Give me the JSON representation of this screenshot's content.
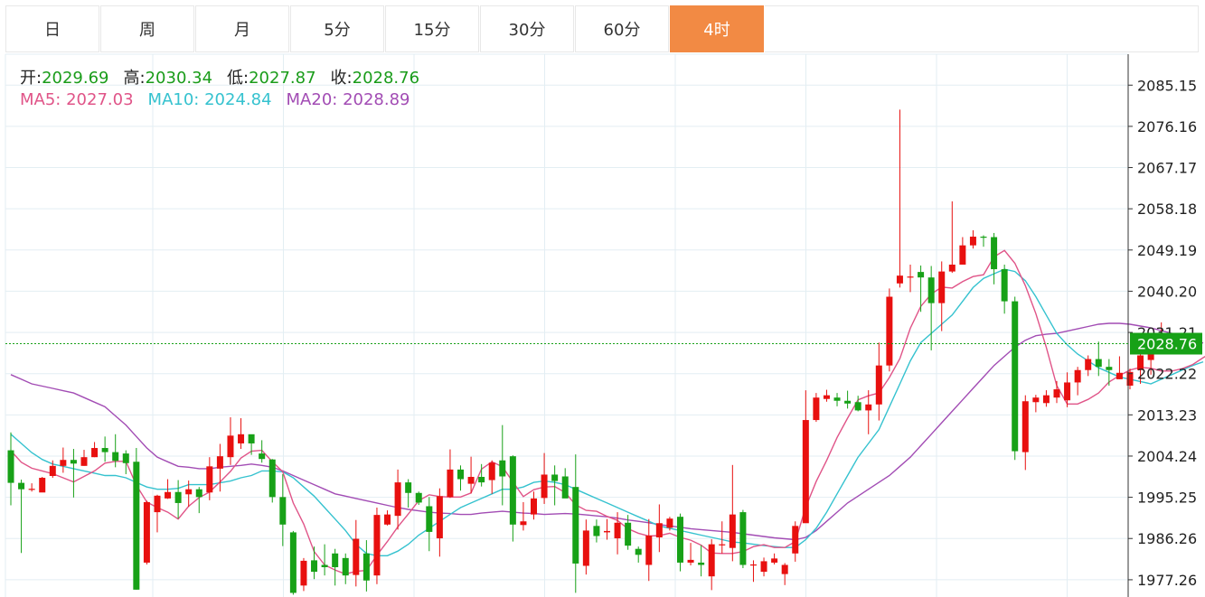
{
  "tabs": [
    {
      "label": "日",
      "active": false
    },
    {
      "label": "周",
      "active": false
    },
    {
      "label": "月",
      "active": false
    },
    {
      "label": "5分",
      "active": false
    },
    {
      "label": "15分",
      "active": false
    },
    {
      "label": "30分",
      "active": false
    },
    {
      "label": "60分",
      "active": false
    },
    {
      "label": "4时",
      "active": true
    }
  ],
  "ohlc": {
    "open_label": "开:",
    "open": "2029.69",
    "high_label": "高:",
    "high": "2030.34",
    "low_label": "低:",
    "low": "2027.87",
    "close_label": "收:",
    "close": "2028.76"
  },
  "ma": {
    "ma5_label": "MA5:",
    "ma5": "2027.03",
    "ma10_label": "MA10:",
    "ma10": "2024.84",
    "ma20_label": "MA20:",
    "ma20": "2028.89"
  },
  "colors": {
    "up": "#e8100f",
    "down": "#17a117",
    "ma5": "#e05488",
    "ma10": "#35c2cf",
    "ma20": "#a24cb4",
    "grid": "#e3eef3",
    "price_tag": "#17a117",
    "active_tab": "#f28a44"
  },
  "chart_data": {
    "type": "candlestick",
    "y_ticks": [
      "2085.15",
      "2076.16",
      "2067.17",
      "2058.18",
      "2049.19",
      "2040.20",
      "2031.21",
      "2022.22",
      "2013.23",
      "2004.24",
      "1995.25",
      "1986.26",
      "1977.26"
    ],
    "ylim": [
      1973.5,
      2091.9
    ],
    "last_price": "2028.76",
    "candles": [
      [
        2005.5,
        1998.4,
        2009.4,
        1993.5
      ],
      [
        1998.4,
        1997.0,
        1999.1,
        1983.1
      ],
      [
        1997.0,
        1997.1,
        1998.3,
        1996.5
      ],
      [
        1996.3,
        1999.5,
        1999.7,
        1996.5
      ],
      [
        1999.9,
        2002.1,
        2003.3,
        1999.5
      ],
      [
        2002.1,
        2003.4,
        2006.1,
        2000.6
      ],
      [
        2003.4,
        2002.6,
        2005.8,
        1995.2
      ],
      [
        2002.1,
        2004.0,
        2005.6,
        2002.1
      ],
      [
        2004.0,
        2006.0,
        2007.3,
        2004.0
      ],
      [
        2006.0,
        2005.1,
        2008.5,
        2003.0
      ],
      [
        2005.1,
        2003.2,
        2009.0,
        2001.8
      ],
      [
        2004.8,
        2002.7,
        2005.5,
        2000.3
      ],
      [
        2003.0,
        1975.1,
        2006.0,
        1975.1
      ],
      [
        1981.0,
        1994.2,
        1994.5,
        1980.6
      ],
      [
        1992.0,
        1995.6,
        1995.8,
        1987.6
      ],
      [
        1995.0,
        1996.4,
        1999.2,
        1994.9
      ],
      [
        1996.4,
        1994.0,
        1999.0,
        1990.6
      ],
      [
        1995.9,
        1997.0,
        1998.9,
        1993.2
      ],
      [
        1997.0,
        1995.3,
        1997.5,
        1991.8
      ],
      [
        1996.3,
        2002.0,
        2004.0,
        1994.6
      ],
      [
        2001.5,
        2004.2,
        2006.9,
        1996.5
      ],
      [
        2004.0,
        2008.7,
        2012.7,
        2002.3
      ],
      [
        2007.0,
        2009.0,
        2012.5,
        2005.8
      ],
      [
        2009.0,
        2007.0,
        2008.9,
        2004.5
      ],
      [
        2004.8,
        2003.6,
        2007.7,
        2002.8
      ],
      [
        2003.5,
        1995.3,
        2003.6,
        1994.1
      ],
      [
        1995.3,
        1989.3,
        2000.3,
        1984.6
      ],
      [
        1987.6,
        1974.4,
        1987.9,
        1974.0
      ],
      [
        1976.0,
        1981.4,
        1982.0,
        1974.8
      ],
      [
        1981.5,
        1979.0,
        1984.5,
        1977.4
      ],
      [
        1980.5,
        1980.0,
        1985.0,
        1978.2
      ],
      [
        1983.0,
        1980.0,
        1984.0,
        1976.0
      ],
      [
        1982.0,
        1978.2,
        1983.0,
        1976.3
      ],
      [
        1978.3,
        1986.2,
        1990.3,
        1975.8
      ],
      [
        1983.0,
        1977.1,
        1985.9,
        1974.7
      ],
      [
        1978.2,
        1991.4,
        1993.0,
        1976.3
      ],
      [
        1989.3,
        1991.5,
        1992.4,
        1989.1
      ],
      [
        1991.2,
        1998.5,
        2001.3,
        1988.2
      ],
      [
        1998.5,
        1996.2,
        1999.2,
        1993.0
      ],
      [
        1996.2,
        1994.1,
        1996.5,
        1993.6
      ],
      [
        1993.3,
        1987.7,
        1995.3,
        1983.5
      ],
      [
        1986.3,
        1995.5,
        1997.2,
        1982.3
      ],
      [
        1995.3,
        2001.3,
        2005.7,
        1995.1
      ],
      [
        2001.3,
        1999.2,
        2002.2,
        1996.7
      ],
      [
        1998.2,
        1999.7,
        2004.1,
        1996.1
      ],
      [
        1999.7,
        1998.5,
        2002.5,
        1997.6
      ],
      [
        1999.0,
        2002.8,
        2003.3,
        1996.0
      ],
      [
        2003.3,
        1999.8,
        2011.0,
        1993.5
      ],
      [
        2004.2,
        1989.3,
        2004.4,
        1985.6
      ],
      [
        1989.2,
        1990.0,
        1994.2,
        1988.0
      ],
      [
        1991.5,
        1995.0,
        1996.5,
        1990.4
      ],
      [
        1995.1,
        2000.2,
        2004.9,
        1993.8
      ],
      [
        2000.2,
        1998.8,
        2002.2,
        1993.5
      ],
      [
        1999.8,
        1995.0,
        2001.6,
        1995.2
      ],
      [
        1997.5,
        1980.8,
        2004.6,
        1974.4
      ],
      [
        1980.3,
        1988.0,
        1990.4,
        1978.4
      ],
      [
        1989.0,
        1986.8,
        1990.4,
        1985.4
      ],
      [
        1987.6,
        1987.9,
        1990.5,
        1986.0
      ],
      [
        1986.3,
        1989.7,
        1992.0,
        1982.8
      ],
      [
        1989.7,
        1984.7,
        1991.4,
        1983.8
      ],
      [
        1984.0,
        1982.7,
        1984.5,
        1981.0
      ],
      [
        1980.5,
        1986.9,
        1990.5,
        1977.0
      ],
      [
        1986.5,
        1989.6,
        1993.7,
        1983.3
      ],
      [
        1988.6,
        1990.6,
        1991.0,
        1988.0
      ],
      [
        1991.0,
        1981.0,
        1991.7,
        1979.1
      ],
      [
        1981.0,
        1981.6,
        1985.3,
        1980.4
      ],
      [
        1981.0,
        1980.5,
        1984.8,
        1978.0
      ],
      [
        1978.0,
        1985.0,
        1986.1,
        1975.0
      ],
      [
        1985.0,
        1985.0,
        1990.0,
        1983.0
      ],
      [
        1984.2,
        1991.5,
        2002.3,
        1981.3
      ],
      [
        1992.0,
        1980.5,
        1992.5,
        1979.8
      ],
      [
        1980.5,
        1980.6,
        1981.5,
        1976.8
      ],
      [
        1979.0,
        1981.3,
        1982.1,
        1978.0
      ],
      [
        1981.0,
        1981.9,
        1983.0,
        1980.6
      ],
      [
        1978.5,
        1980.5,
        1980.9,
        1976.1
      ],
      [
        1983.0,
        1989.0,
        1990.0,
        1981.2
      ],
      [
        1989.6,
        2012.1,
        2018.6,
        1989.8
      ],
      [
        2012.1,
        2017.0,
        2018.0,
        2011.7
      ],
      [
        2016.7,
        2017.5,
        2018.7,
        2016.1
      ],
      [
        2017.0,
        2016.3,
        2018.0,
        2015.1
      ],
      [
        2016.3,
        2015.7,
        2018.5,
        2014.6
      ],
      [
        2016.0,
        2014.2,
        2017.4,
        2014.0
      ],
      [
        2014.2,
        2015.5,
        2018.6,
        2009.0
      ],
      [
        2015.5,
        2024.0,
        2029.0,
        2012.0
      ],
      [
        2024.0,
        2039.0,
        2040.8,
        2022.7
      ],
      [
        2041.9,
        2043.6,
        2079.8,
        2041.0
      ],
      [
        2043.4,
        2043.4,
        2046.0,
        2040.0
      ],
      [
        2044.4,
        2043.2,
        2045.8,
        2035.7
      ],
      [
        2043.2,
        2037.6,
        2045.7,
        2027.3
      ],
      [
        2037.6,
        2044.5,
        2046.7,
        2031.5
      ],
      [
        2044.5,
        2046.0,
        2059.8,
        2044.2
      ],
      [
        2046.0,
        2050.2,
        2052.0,
        2046.0
      ],
      [
        2050.2,
        2052.1,
        2053.5,
        2049.5
      ],
      [
        2052.1,
        2052.0,
        2052.4,
        2049.9
      ],
      [
        2052.0,
        2045.0,
        2052.9,
        2041.7
      ],
      [
        2045.0,
        2038.0,
        2046.0,
        2035.3
      ],
      [
        2038.0,
        2005.3,
        2039.0,
        2003.4
      ],
      [
        2005.1,
        2016.2,
        2017.5,
        2001.2
      ],
      [
        2016.0,
        2017.0,
        2017.6,
        2013.8
      ],
      [
        2015.8,
        2017.5,
        2018.6,
        2015.0
      ],
      [
        2017.0,
        2018.8,
        2020.6,
        2015.8
      ],
      [
        2016.4,
        2020.3,
        2022.5,
        2014.9
      ],
      [
        2020.3,
        2023.0,
        2023.7,
        2017.5
      ],
      [
        2023.0,
        2025.4,
        2026.2,
        2021.7
      ],
      [
        2025.4,
        2023.7,
        2029.2,
        2021.7
      ],
      [
        2023.7,
        2023.0,
        2025.4,
        2019.6
      ],
      [
        2021.0,
        2022.4,
        2026.0,
        2021.0
      ],
      [
        2019.6,
        2022.6,
        2023.3,
        2018.8
      ],
      [
        2023.0,
        2026.2,
        2027.0,
        2020.0
      ],
      [
        2025.2,
        2029.0,
        2029.4,
        2022.0
      ],
      [
        2027.0,
        2029.2,
        2033.4,
        2026.8
      ],
      [
        2029.7,
        2028.8,
        2030.3,
        2027.9
      ]
    ],
    "ma5": [
      2005.4,
      2002.9,
      2001.6,
      2001.0,
      2000.4,
      1999.5,
      1998.6,
      1999.8,
      2001.0,
      2002.7,
      2003.1,
      2003.1,
      1997.9,
      1994.2,
      1993.0,
      1992.0,
      1990.5,
      1993.3,
      1995.2,
      1996.4,
      1998.6,
      2000.9,
      2003.8,
      2005.3,
      2005.5,
      2003.0,
      2000.8,
      1994.0,
      1989.4,
      1983.4,
      1980.5,
      1979.4,
      1978.5,
      1979.1,
      1979.3,
      1982.6,
      1985.6,
      1988.8,
      1991.6,
      1994.5,
      1995.8,
      1995.4,
      1995.3,
      1995.3,
      1996.2,
      2001.4,
      2003.0,
      2001.9,
      1998.6,
      1995.4,
      1996.9,
      1997.5,
      1997.6,
      1996.3,
      1993.6,
      1992.4,
      1992.2,
      1991.1,
      1990.2,
      1988.4,
      1987.4,
      1986.8,
      1986.9,
      1987.4,
      1986.5,
      1985.9,
      1984.8,
      1983.1,
      1983.0,
      1983.0,
      1983.4,
      1984.5,
      1984.9,
      1984.3,
      1984.3,
      1985.6,
      1993.1,
      1998.7,
      2003.3,
      2008.3,
      2012.5,
      2016.5,
      2017.4,
      2018.0,
      2021.4,
      2025.5,
      2032.1,
      2036.9,
      2039.6,
      2041.1,
      2040.9,
      2042.3,
      2043.4,
      2043.8,
      2047.7,
      2049.1,
      2046.3,
      2041.4,
      2035.3,
      2028.0,
      2019.6,
      2015.6,
      2015.6,
      2016.6,
      2018.0,
      2020.4,
      2021.8,
      2023.0,
      2023.6,
      2023.4,
      2022.8,
      2022.8,
      2023.3,
      2024.2,
      2025.7,
      2027.0
    ],
    "ma10": [
      2009.0,
      2007.0,
      2005.0,
      2003.5,
      2002.5,
      2002.0,
      2001.5,
      2001.0,
      2000.5,
      2000.0,
      2000.0,
      1999.5,
      1998.5,
      1997.5,
      1997.0,
      1997.0,
      1997.2,
      1998.0,
      1998.0,
      1998.0,
      1998.4,
      1998.8,
      1999.5,
      2000.0,
      2001.0,
      2001.0,
      2000.8,
      1999.5,
      1997.5,
      1995.5,
      1993.0,
      1990.5,
      1988.0,
      1985.0,
      1983.0,
      1982.5,
      1982.5,
      1983.5,
      1985.0,
      1987.0,
      1988.5,
      1990.0,
      1991.5,
      1993.0,
      1994.0,
      1995.0,
      1996.0,
      1997.0,
      1997.0,
      1997.5,
      1998.5,
      1998.8,
      1998.5,
      1998.0,
      1997.0,
      1996.0,
      1995.0,
      1994.0,
      1993.0,
      1992.0,
      1991.0,
      1990.0,
      1989.0,
      1988.5,
      1988.0,
      1987.5,
      1987.0,
      1986.5,
      1986.0,
      1985.5,
      1985.3,
      1985.0,
      1984.7,
      1984.5,
      1984.3,
      1984.3,
      1986.0,
      1988.5,
      1992.0,
      1996.0,
      2000.0,
      2004.0,
      2007.0,
      2010.0,
      2015.0,
      2020.0,
      2025.0,
      2029.0,
      2031.0,
      2033.0,
      2035.0,
      2038.0,
      2041.0,
      2043.0,
      2044.0,
      2045.0,
      2044.5,
      2042.5,
      2039.0,
      2035.0,
      2031.0,
      2028.5,
      2026.5,
      2025.0,
      2023.5,
      2022.5,
      2021.5,
      2021.0,
      2020.5,
      2020.0,
      2021.0,
      2022.0,
      2023.0,
      2024.0,
      2024.8
    ],
    "ma20": [
      2022.0,
      2021.0,
      2020.0,
      2019.5,
      2019.0,
      2018.5,
      2018.0,
      2017.0,
      2016.0,
      2015.0,
      2013.0,
      2011.0,
      2008.5,
      2006.0,
      2004.0,
      2003.0,
      2002.0,
      2001.8,
      2001.5,
      2001.5,
      2001.8,
      2002.0,
      2002.2,
      2002.5,
      2002.2,
      2001.8,
      2001.0,
      2000.0,
      1999.0,
      1998.0,
      1997.0,
      1996.0,
      1995.5,
      1995.0,
      1994.5,
      1994.0,
      1993.5,
      1993.0,
      1992.6,
      1992.3,
      1992.0,
      1991.8,
      1991.7,
      1991.5,
      1991.5,
      1991.8,
      1992.0,
      1992.2,
      1992.0,
      1991.8,
      1991.7,
      1991.5,
      1991.6,
      1991.7,
      1991.6,
      1991.4,
      1991.2,
      1991.0,
      1990.7,
      1990.3,
      1990.0,
      1989.7,
      1989.3,
      1989.0,
      1988.7,
      1988.4,
      1988.2,
      1988.0,
      1987.8,
      1987.6,
      1987.3,
      1987.0,
      1986.7,
      1986.4,
      1986.2,
      1986.0,
      1986.5,
      1988.0,
      1990.0,
      1992.0,
      1994.0,
      1995.5,
      1997.0,
      1998.5,
      2000.0,
      2002.0,
      2004.0,
      2006.5,
      2009.0,
      2011.5,
      2014.0,
      2016.5,
      2019.0,
      2021.5,
      2024.0,
      2026.0,
      2028.0,
      2029.5,
      2030.5,
      2030.8,
      2031.0,
      2031.5,
      2032.0,
      2032.5,
      2033.0,
      2033.2,
      2033.2,
      2033.0,
      2032.6,
      2032.2,
      2031.6,
      2031.0,
      2030.3,
      2029.6,
      2028.9
    ]
  }
}
